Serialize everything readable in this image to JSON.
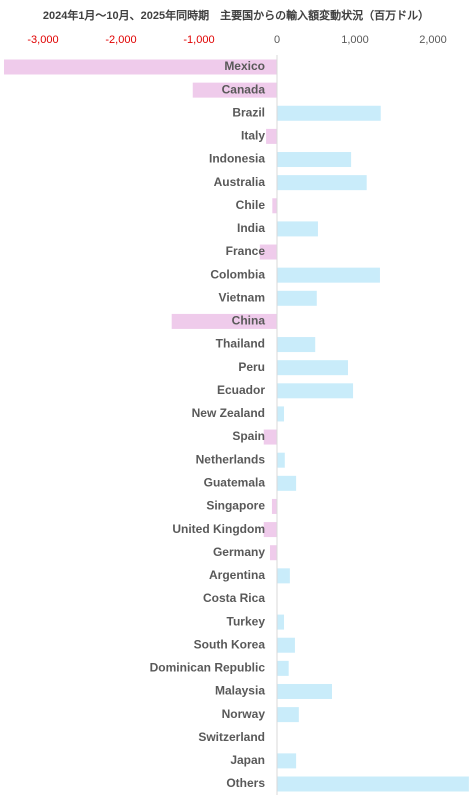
{
  "chart_data": {
    "type": "barh",
    "title": "2024年1月～10月、2025年同時期　主要国からの輸入額変動状況（百万ドル）",
    "categories": [
      "Mexico",
      "Canada",
      "Brazil",
      "Italy",
      "Indonesia",
      "Australia",
      "Chile",
      "India",
      "France",
      "Colombia",
      "Vietnam",
      "China",
      "Thailand",
      "Peru",
      "Ecuador",
      "New Zealand",
      "Spain",
      "Netherlands",
      "Guatemala",
      "Singapore",
      "United Kingdom",
      "Germany",
      "Argentina",
      "Costa Rica",
      "Turkey",
      "South Korea",
      "Dominican Republic",
      "Malaysia",
      "Norway",
      "Switzerland",
      "Japan",
      "Others"
    ],
    "values": [
      -3500,
      -1080,
      1330,
      -140,
      950,
      1150,
      -60,
      525,
      -220,
      1320,
      510,
      -1350,
      490,
      910,
      975,
      90,
      -170,
      100,
      245,
      -65,
      -170,
      -90,
      165,
      0,
      90,
      230,
      150,
      705,
      280,
      5,
      245,
      2460
    ],
    "color": "#c9ecfa",
    "negative_color": "#efcbeb",
    "negative_tick_color": "#e00000",
    "xlim": [
      -3500,
      2500
    ],
    "xticks": [
      {
        "value": -3000,
        "label": "-3,000"
      },
      {
        "value": -2000,
        "label": "-2,000"
      },
      {
        "value": -1000,
        "label": "-1,000"
      },
      0,
      {
        "value": 1000,
        "label": "1,000"
      },
      {
        "value": 2000,
        "label": "2,000"
      }
    ]
  }
}
